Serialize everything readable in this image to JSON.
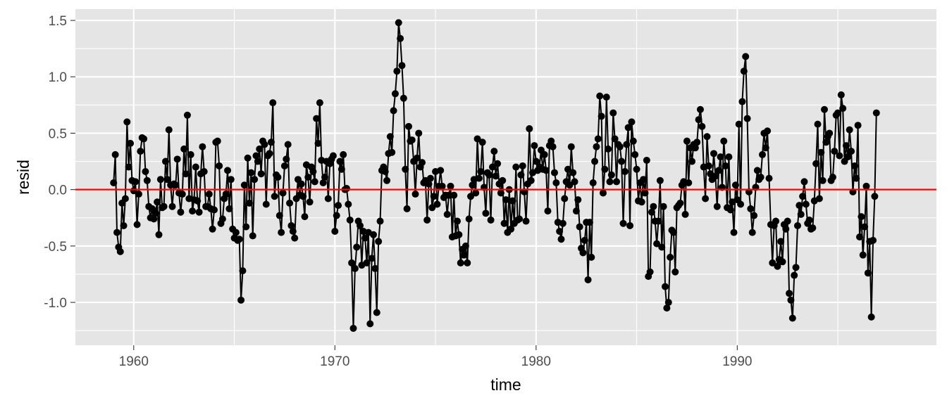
{
  "chart_data": {
    "type": "line",
    "title": "",
    "xlabel": "time",
    "ylabel": "resid",
    "xlim": [
      1957.1,
      1999.9
    ],
    "ylim": [
      -1.38,
      1.6
    ],
    "x_ticks": [
      1960,
      1970,
      1980,
      1990
    ],
    "x_minor": [
      1965,
      1975,
      1985,
      1995
    ],
    "y_ticks": [
      -1.0,
      -0.5,
      0.0,
      0.5,
      1.0,
      1.5
    ],
    "y_tick_labels": [
      "-1.0",
      "-0.5",
      "0.0",
      "0.5",
      "1.0",
      "1.5"
    ],
    "grid": true,
    "reference_line": {
      "y": 0,
      "color": "#ff0000"
    },
    "colors": {
      "panel": "#e5e5e5",
      "grid": "#ffffff",
      "series": "#000000",
      "reference": "#ff0000"
    },
    "series": [
      {
        "x_start": 1959.0,
        "x_step": 0.08333,
        "markers": true,
        "values": [
          0.06,
          0.31,
          -0.38,
          -0.51,
          -0.55,
          -0.12,
          -0.32,
          -0.08,
          0.6,
          0.2,
          0.41,
          0.08,
          -0.01,
          0.07,
          -0.31,
          -0.04,
          0.34,
          0.46,
          0.45,
          0.16,
          0.08,
          -0.15,
          -0.25,
          -0.17,
          -0.26,
          -0.21,
          -0.11,
          -0.4,
          0.09,
          -0.16,
          -0.15,
          0.25,
          0.09,
          0.53,
          0.04,
          -0.15,
          0.05,
          0.04,
          0.27,
          -0.03,
          -0.2,
          -0.04,
          0.36,
          0.14,
          0.66,
          -0.08,
          0.31,
          -0.19,
          -0.09,
          0.2,
          -0.1,
          -0.2,
          0.14,
          0.38,
          0.16,
          -0.15,
          -0.15,
          -0.04,
          -0.17,
          -0.35,
          -0.18,
          0.42,
          0.43,
          0.21,
          -0.3,
          -0.26,
          -0.08,
          -0.04,
          0.17,
          -0.17,
          0.09,
          -0.35,
          -0.43,
          -0.38,
          -0.45,
          -0.44,
          -0.98,
          -0.72,
          0.04,
          -0.33,
          0.28,
          -0.12,
          0.15,
          -0.41,
          0.09,
          0.3,
          0.25,
          0.36,
          0.14,
          0.43,
          0.4,
          -0.13,
          0.3,
          0.32,
          0.42,
          0.77,
          -0.06,
          0.13,
          0.11,
          -0.23,
          -0.38,
          -0.03,
          0.21,
          0.27,
          0.4,
          -0.12,
          -0.32,
          -0.37,
          -0.43,
          -0.08,
          0.09,
          -0.05,
          0.05,
          -0.06,
          -0.24,
          0.22,
          0.11,
          -0.11,
          0.2,
          0.16,
          0.07,
          0.63,
          0.41,
          0.77,
          0.26,
          0.06,
          0.11,
          0.25,
          -0.08,
          0.23,
          0.27,
          0.3,
          -0.37,
          -0.23,
          -0.14,
          0.25,
          0.18,
          0.31,
          0.0,
          0.01,
          -0.13,
          -0.27,
          -0.65,
          -1.23,
          -0.7,
          -0.51,
          -0.28,
          -0.32,
          -0.67,
          -0.37,
          -0.43,
          -0.65,
          -0.38,
          -1.19,
          -0.61,
          -0.4,
          -0.7,
          -1.09,
          -0.46,
          -0.28,
          0.17,
          0.2,
          0.16,
          0.08,
          0.32,
          0.47,
          0.33,
          0.7,
          0.85,
          1.05,
          1.48,
          1.34,
          1.1,
          0.81,
          0.18,
          -0.17,
          0.56,
          0.43,
          0.44,
          0.25,
          -0.04,
          0.28,
          0.5,
          0.2,
          0.24,
          0.06,
          0.08,
          -0.27,
          0.05,
          0.1,
          -0.16,
          -0.06,
          0.16,
          -0.13,
          0.03,
          0.17,
          0.03,
          -0.07,
          -0.05,
          -0.22,
          -0.05,
          0.03,
          -0.42,
          -0.05,
          -0.41,
          -0.28,
          -0.4,
          -0.65,
          -0.53,
          -0.58,
          -0.5,
          -0.65,
          -0.26,
          -0.06,
          0.04,
          0.09,
          -0.03,
          0.45,
          0.1,
          0.16,
          0.42,
          0.02,
          -0.21,
          0.15,
          0.13,
          -0.27,
          0.2,
          0.34,
          0.12,
          0.23,
          0.05,
          -0.03,
          0.08,
          -0.3,
          -0.09,
          -0.38,
          0.0,
          -0.35,
          -0.1,
          -0.3,
          0.2,
          -0.27,
          -0.26,
          0.13,
          0.21,
          -0.02,
          -0.28,
          0.05,
          0.54,
          0.08,
          0.15,
          0.39,
          0.25,
          0.17,
          0.2,
          0.35,
          0.18,
          0.31,
          0.17,
          -0.19,
          0.39,
          0.43,
          0.38,
          0.15,
          0.06,
          -0.29,
          -0.37,
          -0.44,
          -0.3,
          -0.08,
          0.07,
          0.18,
          0.04,
          0.38,
          0.15,
          0.07,
          -0.19,
          -0.09,
          -0.33,
          -0.52,
          -0.56,
          -0.45,
          -0.29,
          -0.8,
          -0.29,
          -0.6,
          0.06,
          0.25,
          0.38,
          0.45,
          0.83,
          0.65,
          -0.03,
          0.18,
          0.82,
          0.36,
          0.07,
          0.13,
          0.68,
          0.45,
          0.07,
          0.4,
          0.38,
          0.25,
          -0.3,
          0.16,
          0.4,
          0.55,
          -0.32,
          0.6,
          0.43,
          0.31,
          0.18,
          -0.1,
          0.06,
          -0.11,
          0.09,
          -0.03,
          0.26,
          -0.77,
          -0.73,
          -0.2,
          -0.15,
          -0.28,
          -0.48,
          -0.28,
          0.08,
          -0.51,
          -0.15,
          -0.86,
          -1.05,
          -1.0,
          -0.6,
          -0.36,
          -0.38,
          -0.73,
          -0.16,
          -0.14,
          -0.12,
          0.04,
          0.07,
          -0.22,
          0.43,
          0.06,
          0.37,
          0.25,
          0.4,
          0.37,
          0.42,
          0.62,
          0.71,
          0.56,
          0.2,
          -0.08,
          0.47,
          0.21,
          0.14,
          0.09,
          0.32,
          0.12,
          -0.15,
          0.17,
          0.29,
          0.02,
          0.43,
          0.21,
          -0.16,
          0.29,
          -0.18,
          -0.11,
          -0.38,
          0.04,
          -0.09,
          0.58,
          -0.13,
          0.78,
          1.05,
          1.18,
          0.63,
          -0.02,
          -0.17,
          -0.38,
          -0.23,
          0.02,
          0.17,
          0.09,
          0.11,
          0.31,
          0.5,
          0.37,
          0.52,
          0.1,
          -0.31,
          -0.65,
          -0.32,
          -0.28,
          -0.68,
          -0.62,
          -0.46,
          -0.64,
          -0.31,
          -0.35,
          -0.28,
          -0.92,
          -0.98,
          -1.14,
          -0.76,
          -0.69,
          -0.32,
          -0.14,
          -0.22,
          -0.06,
          0.07,
          -0.13,
          -0.3,
          -0.27,
          -0.35,
          -0.34,
          -0.1,
          0.23,
          0.58,
          -0.08,
          0.33,
          0.08,
          0.71,
          0.42,
          0.47,
          0.5,
          0.08,
          0.11,
          0.34,
          0.66,
          0.68,
          0.3,
          0.84,
          0.72,
          0.25,
          0.39,
          0.29,
          0.53,
          0.34,
          -0.02,
          0.21,
          0.1,
          0.57,
          -0.42,
          -0.24,
          -0.58,
          -0.33,
          0.03,
          -0.74,
          -0.46,
          -1.13,
          -0.45,
          -0.06,
          0.68
        ]
      }
    ]
  }
}
